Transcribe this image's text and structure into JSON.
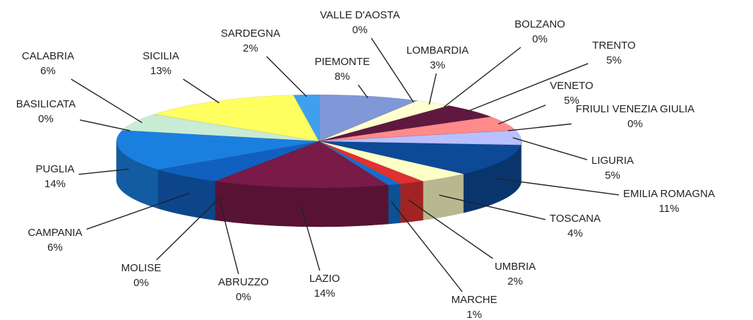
{
  "chart_data": {
    "type": "pie",
    "categories": [
      "PIEMONTE",
      "VALLE D'AOSTA",
      "LOMBARDIA",
      "BOLZANO",
      "TRENTO",
      "VENETO",
      "FRIULI VENEZIA GIULIA",
      "LIGURIA",
      "EMILIA ROMAGNA",
      "TOSCANA",
      "UMBRIA",
      "MARCHE",
      "LAZIO",
      "ABRUZZO",
      "MOLISE",
      "CAMPANIA",
      "PUGLIA",
      "BASILICATA",
      "CALABRIA",
      "SICILIA",
      "SARDEGNA"
    ],
    "values": [
      8,
      0,
      3,
      0,
      5,
      5,
      0,
      5,
      11,
      4,
      2,
      1,
      14,
      0,
      0,
      6,
      14,
      0,
      6,
      13,
      2
    ],
    "value_labels": [
      "8%",
      "0%",
      "3%",
      "0%",
      "5%",
      "5%",
      "0%",
      "5%",
      "11%",
      "4%",
      "2%",
      "1%",
      "14%",
      "0%",
      "0%",
      "6%",
      "14%",
      "0%",
      "6%",
      "13%",
      "2%"
    ],
    "colors": [
      "#8098d8",
      "#ffffd0",
      "#ffffd0",
      "#5a1838",
      "#601840",
      "#ff8a8a",
      "#c4c8ff",
      "#b8c0ff",
      "#0c4a98",
      "#ffffc8",
      "#e03030",
      "#1070d0",
      "#7a1a48",
      "#2060b0",
      "#1a5aa8",
      "#1060c0",
      "#1a80e0",
      "#c8ecd8",
      "#c8ecd4",
      "#ffff60",
      "#40a0f0"
    ]
  }
}
